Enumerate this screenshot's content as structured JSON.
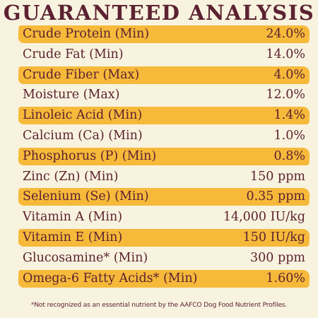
{
  "title": "GUARANTEED ANALYSIS",
  "rows": [
    {
      "label": "Crude Protein (Min)",
      "value": "24.0%",
      "highlight": true
    },
    {
      "label": "Crude Fat (Min)",
      "value": "14.0%",
      "highlight": false
    },
    {
      "label": "Crude Fiber (Max)",
      "value": "4.0%",
      "highlight": true
    },
    {
      "label": "Moisture (Max)",
      "value": "12.0%",
      "highlight": false
    },
    {
      "label": "Linoleic Acid (Min)",
      "value": "1.4%",
      "highlight": true
    },
    {
      "label": "Calcium (Ca) (Min)",
      "value": "1.0%",
      "highlight": false
    },
    {
      "label": "Phosphorus (P) (Min)",
      "value": "0.8%",
      "highlight": true
    },
    {
      "label": "Zinc (Zn) (Min)",
      "value": "150 ppm",
      "highlight": false
    },
    {
      "label": "Selenium (Se) (Min)",
      "value": "0.35 ppm",
      "highlight": true
    },
    {
      "label": "Vitamin A (Min)",
      "value": "14,000 IU/kg",
      "highlight": false
    },
    {
      "label": "Vitamin E (Min)",
      "value": "150 IU/kg",
      "highlight": true
    },
    {
      "label": "Glucosamine* (Min)",
      "value": "300 ppm",
      "highlight": false
    },
    {
      "label": "Omega-6 Fatty Acids* (Min)",
      "value": "1.60%",
      "highlight": true
    }
  ],
  "footnote": "*Not recognized as an essential nutrient by the AAFCO Dog Food Nutrient Profiles.",
  "colors": {
    "background": "#f8f3df",
    "band": "#f6b93a",
    "text": "#5c2231"
  }
}
